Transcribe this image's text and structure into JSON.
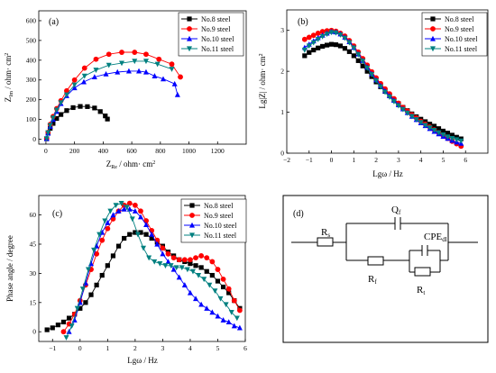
{
  "colors": {
    "No.8 steel": "#000000",
    "No.9 steel": "#ff0000",
    "No.10 steel": "#0000ff",
    "No.11 steel": "#008080"
  },
  "chart_data": [
    {
      "id": "a",
      "panel_label": "(a)",
      "type": "scatter",
      "xlabel_main": "Z",
      "xlabel_sub": "Re",
      "xlabel_unit": " / ohm· cm",
      "ylabel_main": "Z",
      "ylabel_sub": "Im",
      "ylabel_unit": " / ohm· cm",
      "xlim": [
        -50,
        1400
      ],
      "ylim": [
        -25,
        650
      ],
      "xticks": [
        0,
        200,
        400,
        600,
        800,
        1000,
        1200
      ],
      "yticks": [
        0,
        100,
        200,
        300,
        400,
        500,
        600
      ],
      "legend": "top-right",
      "series": [
        {
          "name": "No.8 steel",
          "marker": "square",
          "x": [
            5,
            15,
            30,
            50,
            75,
            105,
            145,
            190,
            240,
            290,
            340,
            380,
            415,
            430
          ],
          "y": [
            2,
            30,
            55,
            80,
            105,
            125,
            145,
            160,
            166,
            165,
            158,
            140,
            118,
            102
          ]
        },
        {
          "name": "No.9 steel",
          "marker": "circle",
          "x": [
            5,
            15,
            30,
            50,
            75,
            105,
            145,
            200,
            270,
            350,
            440,
            530,
            620,
            700,
            790,
            880,
            940
          ],
          "y": [
            3,
            35,
            75,
            115,
            155,
            195,
            245,
            300,
            360,
            405,
            430,
            440,
            440,
            430,
            405,
            380,
            315
          ]
        },
        {
          "name": "No.10 steel",
          "marker": "triangle-up",
          "x": [
            5,
            15,
            30,
            50,
            75,
            105,
            145,
            200,
            265,
            340,
            420,
            500,
            580,
            650,
            700,
            760,
            820,
            900,
            920
          ],
          "y": [
            3,
            30,
            65,
            100,
            140,
            180,
            220,
            260,
            290,
            315,
            330,
            340,
            345,
            345,
            340,
            320,
            305,
            280,
            225
          ]
        },
        {
          "name": "No.11 steel",
          "marker": "triangle-down",
          "x": [
            5,
            15,
            30,
            50,
            75,
            105,
            145,
            200,
            270,
            350,
            440,
            530,
            620,
            700,
            780,
            880
          ],
          "y": [
            3,
            33,
            70,
            108,
            148,
            185,
            225,
            275,
            320,
            350,
            375,
            385,
            395,
            395,
            380,
            355
          ]
        }
      ]
    },
    {
      "id": "b",
      "panel_label": "(b)",
      "type": "scatter",
      "xlabel": "Lgω / Hz",
      "ylabel": "Lg|Z| / ohm· cm",
      "xlim": [
        -2,
        7
      ],
      "ylim": [
        0,
        3.5
      ],
      "xticks": [
        -2,
        -1,
        0,
        1,
        2,
        3,
        4,
        5,
        6
      ],
      "yticks": [
        0,
        1,
        2,
        3
      ],
      "legend": "top-right",
      "series": [
        {
          "name": "No.8 steel",
          "marker": "square",
          "x": [
            -1.2,
            -1,
            -0.8,
            -0.6,
            -0.4,
            -0.2,
            0,
            0.2,
            0.4,
            0.6,
            0.8,
            1,
            1.2,
            1.4,
            1.6,
            1.8,
            2,
            2.2,
            2.4,
            2.6,
            2.8,
            3,
            3.2,
            3.4,
            3.6,
            3.8,
            4,
            4.2,
            4.4,
            4.6,
            4.8,
            5,
            5.2,
            5.4,
            5.6,
            5.8
          ],
          "y": [
            2.38,
            2.46,
            2.52,
            2.57,
            2.61,
            2.64,
            2.66,
            2.65,
            2.62,
            2.56,
            2.48,
            2.38,
            2.26,
            2.13,
            2.0,
            1.87,
            1.74,
            1.62,
            1.51,
            1.4,
            1.3,
            1.21,
            1.12,
            1.04,
            0.96,
            0.89,
            0.83,
            0.77,
            0.71,
            0.66,
            0.6,
            0.54,
            0.49,
            0.44,
            0.39,
            0.35
          ]
        },
        {
          "name": "No.9 steel",
          "marker": "circle",
          "x": [
            -1.2,
            -1,
            -0.8,
            -0.6,
            -0.4,
            -0.2,
            0,
            0.2,
            0.4,
            0.6,
            0.8,
            1,
            1.2,
            1.4,
            1.6,
            1.8,
            2,
            2.2,
            2.4,
            2.6,
            2.8,
            3,
            3.2,
            3.4,
            3.6,
            3.8,
            4,
            4.2,
            4.4,
            4.6,
            4.8,
            5,
            5.2,
            5.4,
            5.6,
            5.8
          ],
          "y": [
            2.78,
            2.83,
            2.88,
            2.93,
            2.97,
            2.99,
            3.0,
            2.98,
            2.93,
            2.86,
            2.75,
            2.62,
            2.47,
            2.31,
            2.15,
            1.99,
            1.84,
            1.7,
            1.57,
            1.45,
            1.33,
            1.22,
            1.12,
            1.03,
            0.94,
            0.86,
            0.78,
            0.71,
            0.64,
            0.57,
            0.5,
            0.43,
            0.36,
            0.29,
            0.23,
            0.17
          ]
        },
        {
          "name": "No.10 steel",
          "marker": "triangle-up",
          "x": [
            -1.2,
            -1,
            -0.8,
            -0.6,
            -0.4,
            -0.2,
            0,
            0.2,
            0.4,
            0.6,
            0.8,
            1,
            1.2,
            1.4,
            1.6,
            1.8,
            2,
            2.2,
            2.4,
            2.6,
            2.8,
            3,
            3.2,
            3.4,
            3.6,
            3.8,
            4,
            4.2,
            4.4,
            4.6,
            4.8,
            5,
            5.2,
            5.4,
            5.6,
            5.8
          ],
          "y": [
            2.58,
            2.66,
            2.74,
            2.82,
            2.88,
            2.93,
            2.97,
            2.96,
            2.91,
            2.83,
            2.72,
            2.58,
            2.42,
            2.26,
            2.1,
            1.94,
            1.79,
            1.65,
            1.52,
            1.4,
            1.29,
            1.18,
            1.08,
            0.99,
            0.9,
            0.82,
            0.74,
            0.67,
            0.6,
            0.53,
            0.47,
            0.41,
            0.36,
            0.31,
            0.27,
            0.24
          ]
        },
        {
          "name": "No.11 steel",
          "marker": "triangle-down",
          "x": [
            -1.2,
            -1,
            -0.8,
            -0.6,
            -0.4,
            -0.2,
            0,
            0.2,
            0.4,
            0.6,
            0.8,
            1,
            1.2,
            1.4,
            1.6,
            1.8,
            2,
            2.2,
            2.4,
            2.6,
            2.8,
            3,
            3.2,
            3.4,
            3.6,
            3.8,
            4,
            4.2,
            4.4,
            4.6,
            4.8,
            5,
            5.2,
            5.4,
            5.6,
            5.8
          ],
          "y": [
            2.52,
            2.62,
            2.7,
            2.78,
            2.85,
            2.91,
            2.95,
            2.94,
            2.89,
            2.81,
            2.7,
            2.57,
            2.41,
            2.25,
            2.08,
            1.92,
            1.77,
            1.62,
            1.49,
            1.37,
            1.26,
            1.16,
            1.07,
            0.98,
            0.9,
            0.82,
            0.75,
            0.68,
            0.62,
            0.56,
            0.5,
            0.45,
            0.4,
            0.36,
            0.33,
            0.3
          ]
        }
      ]
    },
    {
      "id": "c",
      "panel_label": "(c)",
      "type": "scatter",
      "xlabel": "Lgω / Hz",
      "ylabel": "Phase angle / degree",
      "xlim": [
        -1.5,
        6
      ],
      "ylim": [
        -5,
        70
      ],
      "xticks": [
        -1,
        0,
        1,
        2,
        3,
        4,
        5,
        6
      ],
      "yticks": [
        0,
        15,
        30,
        45,
        60
      ],
      "legend": "top-right",
      "series": [
        {
          "name": "No.8 steel",
          "marker": "square",
          "x": [
            -1.2,
            -1,
            -0.8,
            -0.6,
            -0.4,
            -0.2,
            0,
            0.2,
            0.4,
            0.6,
            0.8,
            1,
            1.2,
            1.4,
            1.6,
            1.8,
            2,
            2.2,
            2.4,
            2.6,
            2.8,
            3,
            3.2,
            3.4,
            3.6,
            3.8,
            4,
            4.2,
            4.4,
            4.6,
            4.8,
            5,
            5.2,
            5.4,
            5.6,
            5.8
          ],
          "y": [
            1,
            2,
            3.5,
            5,
            7,
            9,
            12,
            15,
            19,
            24,
            29,
            34,
            39,
            44,
            48,
            50,
            51,
            51,
            50,
            48,
            46,
            44,
            41,
            39,
            37,
            36,
            35,
            34,
            33,
            31,
            29,
            26,
            23,
            20,
            16,
            12
          ]
        },
        {
          "name": "No.9 steel",
          "marker": "circle",
          "x": [
            -0.6,
            -0.4,
            -0.2,
            0,
            0.2,
            0.4,
            0.6,
            0.8,
            1,
            1.2,
            1.4,
            1.6,
            1.8,
            2,
            2.2,
            2.4,
            2.6,
            2.8,
            3,
            3.2,
            3.4,
            3.6,
            3.8,
            4,
            4.2,
            4.4,
            4.6,
            4.8,
            5,
            5.2,
            5.4,
            5.6,
            5.8
          ],
          "y": [
            0,
            4,
            9,
            16,
            24,
            32,
            40,
            47,
            53,
            58,
            62,
            65,
            66,
            65,
            62,
            57,
            52,
            47,
            43,
            40,
            38,
            37,
            37,
            37,
            38,
            39,
            38,
            36,
            32,
            27,
            22,
            16,
            11
          ]
        },
        {
          "name": "No.10 steel",
          "marker": "triangle-up",
          "x": [
            -0.4,
            -0.2,
            0,
            0.2,
            0.4,
            0.6,
            0.8,
            1,
            1.2,
            1.4,
            1.6,
            1.8,
            2,
            2.2,
            2.4,
            2.6,
            2.8,
            3,
            3.2,
            3.4,
            3.6,
            3.8,
            4,
            4.2,
            4.4,
            4.6,
            4.8,
            5,
            5.2,
            5.4,
            5.6,
            5.8
          ],
          "y": [
            0,
            6,
            15,
            25,
            35,
            44,
            51,
            56,
            60,
            62,
            63,
            63,
            62,
            59,
            55,
            50,
            45,
            40,
            36,
            32,
            28,
            24,
            20,
            17,
            14,
            12,
            10,
            8,
            6,
            5,
            3,
            2
          ]
        },
        {
          "name": "No.11 steel",
          "marker": "triangle-down",
          "x": [
            -0.5,
            -0.3,
            -0.1,
            0.1,
            0.3,
            0.5,
            0.7,
            0.9,
            1.1,
            1.3,
            1.5,
            1.7,
            1.9,
            2.1,
            2.3,
            2.5,
            2.7,
            2.9,
            3.1,
            3.3,
            3.5,
            3.7,
            3.9,
            4.1,
            4.3,
            4.5,
            4.7,
            4.9,
            5.1,
            5.3,
            5.5,
            5.7
          ],
          "y": [
            -3,
            3,
            12,
            22,
            32,
            42,
            50,
            57,
            62,
            65,
            66,
            64,
            58,
            50,
            43,
            38,
            36,
            35,
            34,
            34,
            33,
            33,
            32,
            31,
            29,
            27,
            24,
            21,
            17,
            14,
            10,
            7
          ]
        }
      ]
    }
  ],
  "circuit": {
    "panel_label": "(d)",
    "rs_main": "R",
    "rs_sub": "s",
    "qf_main": "Q",
    "qf_sub": "f",
    "rf_main": "R",
    "rf_sub": "f",
    "cpe_main": "CPE",
    "cpe_sub": "dl",
    "rt_main": "R",
    "rt_sub": "t"
  }
}
